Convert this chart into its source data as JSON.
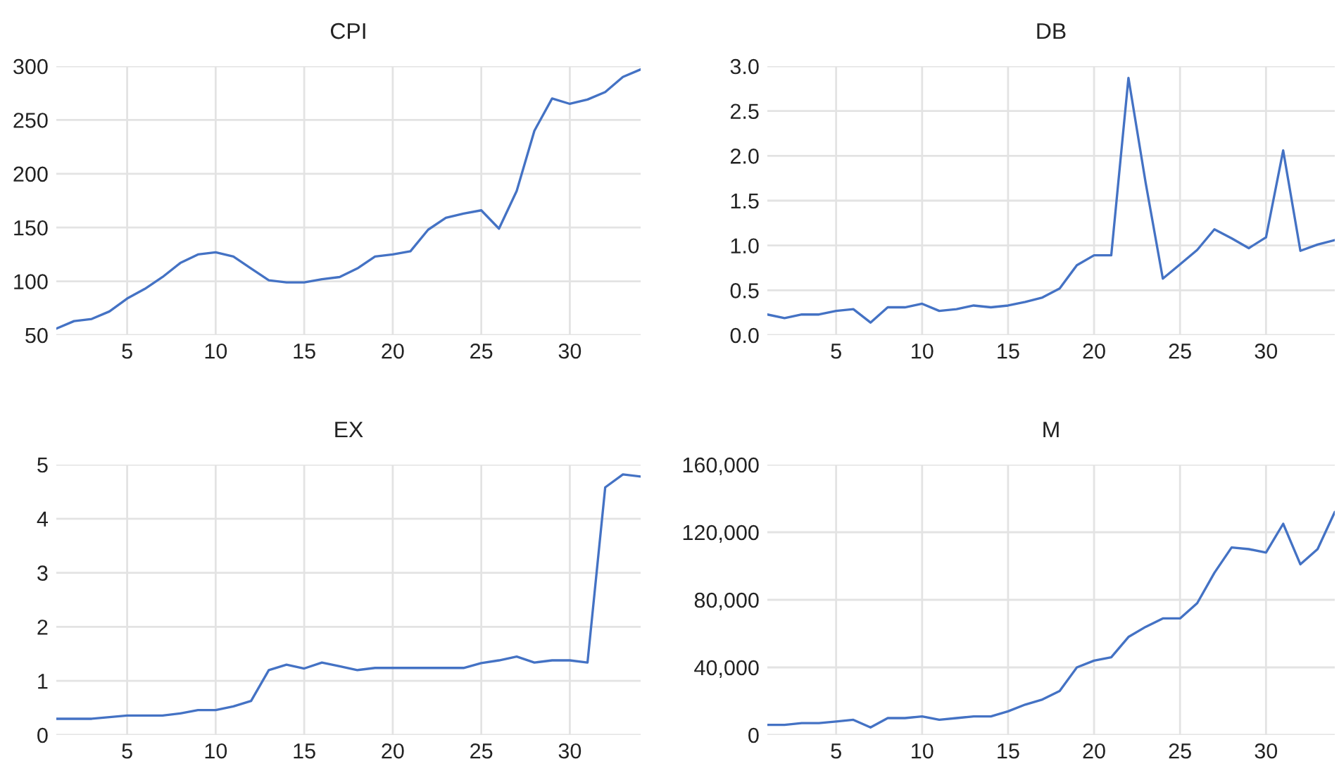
{
  "chart_data": [
    {
      "type": "line",
      "title": "CPI",
      "x": [
        1,
        2,
        3,
        4,
        5,
        6,
        7,
        8,
        9,
        10,
        11,
        12,
        13,
        14,
        15,
        16,
        17,
        18,
        19,
        20,
        21,
        22,
        23,
        24,
        25,
        26,
        27,
        28,
        29,
        30,
        31,
        32,
        33,
        34
      ],
      "series": [
        {
          "color": "#4472c4",
          "values": [
            56,
            63,
            65,
            72,
            84,
            93,
            104,
            117,
            125,
            127,
            123,
            112,
            101,
            99,
            99,
            102,
            104,
            112,
            123,
            125,
            128,
            148,
            159,
            163,
            166,
            149,
            184,
            240,
            270,
            265,
            269,
            276,
            290,
            297
          ]
        }
      ],
      "xlim": [
        1,
        34
      ],
      "xticks": [
        5,
        10,
        15,
        20,
        25,
        30
      ],
      "ylim": [
        50,
        300
      ],
      "yticks": [
        50,
        100,
        150,
        200,
        250,
        300
      ],
      "grid": true
    },
    {
      "type": "line",
      "title": "DB",
      "x": [
        1,
        2,
        3,
        4,
        5,
        6,
        7,
        8,
        9,
        10,
        11,
        12,
        13,
        14,
        15,
        16,
        17,
        18,
        19,
        20,
        21,
        22,
        23,
        24,
        25,
        26,
        27,
        28,
        29,
        30,
        31,
        32,
        33,
        34
      ],
      "series": [
        {
          "color": "#4472c4",
          "values": [
            0.23,
            0.19,
            0.23,
            0.23,
            0.27,
            0.29,
            0.14,
            0.31,
            0.31,
            0.35,
            0.27,
            0.29,
            0.33,
            0.31,
            0.33,
            0.37,
            0.42,
            0.52,
            0.78,
            0.89,
            0.89,
            2.87,
            1.7,
            0.63,
            0.79,
            0.95,
            1.18,
            1.08,
            0.97,
            1.09,
            2.06,
            0.94,
            1.01,
            1.06
          ]
        }
      ],
      "xlim": [
        1,
        34
      ],
      "xticks": [
        5,
        10,
        15,
        20,
        25,
        30
      ],
      "ylim": [
        0,
        3
      ],
      "yticks": [
        {
          "value": 0,
          "label": "0.0"
        },
        {
          "value": 0.5,
          "label": "0.5"
        },
        {
          "value": 1,
          "label": "1.0"
        },
        {
          "value": 1.5,
          "label": "1.5"
        },
        {
          "value": 2,
          "label": "2.0"
        },
        {
          "value": 2.5,
          "label": "2.5"
        },
        {
          "value": 3,
          "label": "3.0"
        }
      ],
      "grid": true
    },
    {
      "type": "line",
      "title": "EX",
      "x": [
        1,
        2,
        3,
        4,
        5,
        6,
        7,
        8,
        9,
        10,
        11,
        12,
        13,
        14,
        15,
        16,
        17,
        18,
        19,
        20,
        21,
        22,
        23,
        24,
        25,
        26,
        27,
        28,
        29,
        30,
        31,
        32,
        33,
        34
      ],
      "series": [
        {
          "color": "#4472c4",
          "values": [
            0.3,
            0.3,
            0.3,
            0.33,
            0.36,
            0.36,
            0.36,
            0.4,
            0.46,
            0.46,
            0.53,
            0.63,
            1.2,
            1.3,
            1.23,
            1.34,
            1.27,
            1.2,
            1.24,
            1.24,
            1.24,
            1.24,
            1.24,
            1.24,
            1.33,
            1.38,
            1.45,
            1.34,
            1.38,
            1.38,
            1.34,
            4.58,
            4.82,
            4.78
          ]
        }
      ],
      "xlim": [
        1,
        34
      ],
      "xticks": [
        5,
        10,
        15,
        20,
        25,
        30
      ],
      "ylim": [
        0,
        5
      ],
      "yticks": [
        0,
        1,
        2,
        3,
        4,
        5
      ],
      "grid": true
    },
    {
      "type": "line",
      "title": "M",
      "x": [
        1,
        2,
        3,
        4,
        5,
        6,
        7,
        8,
        9,
        10,
        11,
        12,
        13,
        14,
        15,
        16,
        17,
        18,
        19,
        20,
        21,
        22,
        23,
        24,
        25,
        26,
        27,
        28,
        29,
        30,
        31,
        32,
        33,
        34
      ],
      "series": [
        {
          "color": "#4472c4",
          "values": [
            6000,
            6000,
            7000,
            7000,
            8000,
            9000,
            4500,
            10000,
            10000,
            11000,
            9000,
            10000,
            11000,
            11000,
            14000,
            18000,
            21000,
            26000,
            40000,
            44000,
            46000,
            58000,
            64000,
            69000,
            69000,
            78000,
            96000,
            111000,
            110000,
            108000,
            125000,
            101000,
            110000,
            132000
          ]
        }
      ],
      "xlim": [
        1,
        34
      ],
      "xticks": [
        5,
        10,
        15,
        20,
        25,
        30
      ],
      "ylim": [
        0,
        160000
      ],
      "yticks": [
        0,
        {
          "value": 40000,
          "label": "40,000"
        },
        {
          "value": 80000,
          "label": "80,000"
        },
        {
          "value": 120000,
          "label": "120,000"
        },
        {
          "value": 160000,
          "label": "160,000"
        }
      ],
      "grid": true
    }
  ]
}
